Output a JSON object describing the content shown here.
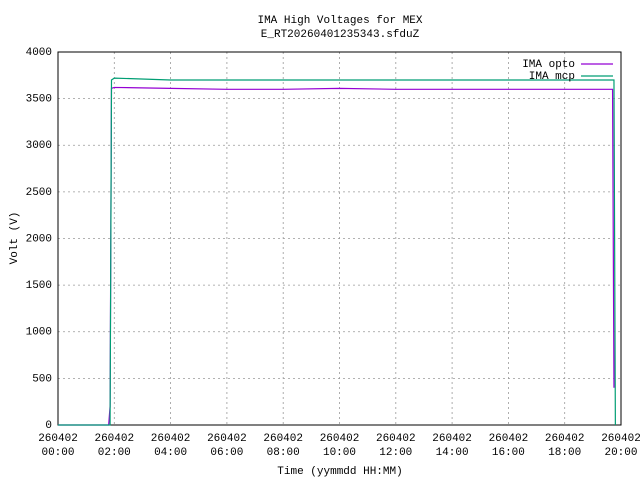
{
  "chart_data": {
    "type": "line",
    "title": "IMA High Voltages for MEX",
    "subtitle": "E_RT20260401235343.sfduZ",
    "x_label": "Time (yymmdd HH:MM)",
    "y_label": "Volt (V)",
    "xlim": [
      0,
      20
    ],
    "ylim": [
      0,
      4000
    ],
    "xticks": [
      {
        "value": 0,
        "label": "260402 00:00"
      },
      {
        "value": 2,
        "label": "260402 02:00"
      },
      {
        "value": 4,
        "label": "260402 04:00"
      },
      {
        "value": 6,
        "label": "260402 06:00"
      },
      {
        "value": 8,
        "label": "260402 08:00"
      },
      {
        "value": 10,
        "label": "260402 10:00"
      },
      {
        "value": 12,
        "label": "260402 12:00"
      },
      {
        "value": 14,
        "label": "260402 14:00"
      },
      {
        "value": 16,
        "label": "260402 16:00"
      },
      {
        "value": 18,
        "label": "260402 18:00"
      },
      {
        "value": 20,
        "label": "260402 20:00"
      }
    ],
    "yticks": [
      0,
      500,
      1000,
      1500,
      2000,
      2500,
      3000,
      3500,
      4000
    ],
    "grid": true,
    "legend": "top-right",
    "series": [
      {
        "name": "IMA opto",
        "color": "#9400d3",
        "x": [
          0,
          1.8,
          1.85,
          1.9,
          2,
          4,
          6,
          8,
          10,
          12,
          14,
          16,
          18,
          19.7,
          19.75
        ],
        "values": [
          0,
          0,
          200,
          3610,
          3620,
          3610,
          3600,
          3600,
          3610,
          3600,
          3600,
          3600,
          3600,
          3600,
          400
        ]
      },
      {
        "name": "IMA mcp",
        "color": "#009e73",
        "x": [
          0,
          1.85,
          1.9,
          2,
          4,
          6,
          8,
          10,
          12,
          14,
          16,
          18,
          19.75,
          19.8
        ],
        "values": [
          0,
          0,
          3700,
          3720,
          3700,
          3700,
          3700,
          3700,
          3700,
          3700,
          3700,
          3700,
          3700,
          0
        ]
      }
    ]
  }
}
